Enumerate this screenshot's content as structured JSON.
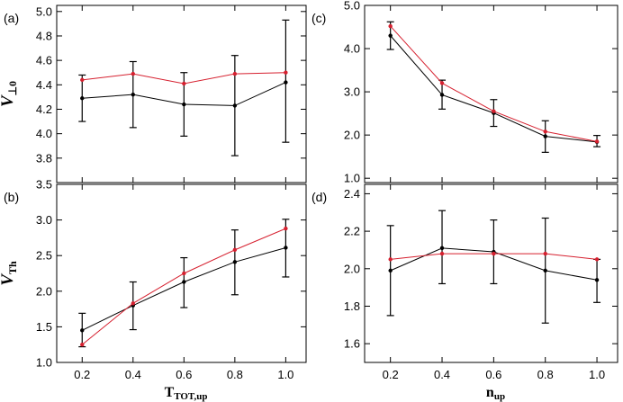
{
  "chart_data": [
    {
      "type": "line",
      "panel": "(a)",
      "ylabel_main": "V",
      "ylabel_sub": "⊥0",
      "xlabel_main": "",
      "xlabel_sub": "",
      "xlim": [
        0.1,
        1.08
      ],
      "ylim": [
        3.6,
        5.05
      ],
      "xticks": [
        0.2,
        0.4,
        0.6,
        0.8,
        1.0
      ],
      "xticklabels": [],
      "yticks": [
        3.8,
        4.0,
        4.2,
        4.4,
        4.6,
        4.8,
        5.0
      ],
      "yticklabels": [
        "3.8",
        "4.0",
        "4.2",
        "4.4",
        "4.6",
        "4.8",
        "5.0"
      ],
      "x": [
        0.2,
        0.4,
        0.6,
        0.8,
        1.0
      ],
      "series": [
        {
          "color": "#000000",
          "values": [
            4.29,
            4.32,
            4.24,
            4.23,
            4.42
          ],
          "err_low": [
            4.1,
            4.05,
            3.98,
            3.82,
            3.93
          ],
          "err_high": [
            4.48,
            4.59,
            4.5,
            4.64,
            4.93
          ]
        },
        {
          "color": "#d6202f",
          "values": [
            4.44,
            4.49,
            4.41,
            4.49,
            4.5
          ]
        }
      ]
    },
    {
      "type": "line",
      "panel": "(c)",
      "ylabel_main": "",
      "ylabel_sub": "",
      "xlabel_main": "",
      "xlabel_sub": "",
      "xlim": [
        0.1,
        1.08
      ],
      "ylim": [
        0.9,
        5.0
      ],
      "xticks": [
        0.2,
        0.4,
        0.6,
        0.8,
        1.0
      ],
      "xticklabels": [],
      "yticks": [
        1.0,
        2.0,
        3.0,
        4.0,
        5.0
      ],
      "yticklabels": [
        "1.0",
        "2.0",
        "3.0",
        "4.0",
        "5.0"
      ],
      "x": [
        0.2,
        0.4,
        0.6,
        0.8,
        1.0
      ],
      "series": [
        {
          "color": "#000000",
          "values": [
            4.3,
            2.93,
            2.51,
            1.97,
            1.84
          ],
          "err_low": [
            3.98,
            2.6,
            2.2,
            1.6,
            1.73
          ],
          "err_high": [
            4.62,
            3.27,
            2.82,
            2.33,
            1.99
          ]
        },
        {
          "color": "#d6202f",
          "values": [
            4.52,
            3.2,
            2.55,
            2.08,
            1.85
          ]
        }
      ]
    },
    {
      "type": "line",
      "panel": "(b)",
      "ylabel_main": "V",
      "ylabel_sub": "Th",
      "xlabel_main": "T",
      "xlabel_sub": "TOT,up",
      "xlim": [
        0.1,
        1.08
      ],
      "ylim": [
        1.0,
        3.5
      ],
      "xticks": [
        0.2,
        0.4,
        0.6,
        0.8,
        1.0
      ],
      "xticklabels": [
        "0.2",
        "0.4",
        "0.6",
        "0.8",
        "1.0"
      ],
      "yticks": [
        1.0,
        1.5,
        2.0,
        2.5,
        3.0,
        3.5
      ],
      "yticklabels": [
        "1.0",
        "1.5",
        "2.0",
        "2.5",
        "3.0",
        "3.5"
      ],
      "x": [
        0.2,
        0.4,
        0.6,
        0.8,
        1.0
      ],
      "series": [
        {
          "color": "#000000",
          "values": [
            1.45,
            1.8,
            2.13,
            2.41,
            2.61
          ],
          "err_low": [
            1.22,
            1.46,
            1.77,
            1.95,
            2.2
          ],
          "err_high": [
            1.69,
            2.13,
            2.47,
            2.86,
            3.01
          ]
        },
        {
          "color": "#d6202f",
          "values": [
            1.25,
            1.83,
            2.25,
            2.58,
            2.88
          ]
        }
      ]
    },
    {
      "type": "line",
      "panel": "(d)",
      "ylabel_main": "",
      "ylabel_sub": "",
      "xlabel_main": "n",
      "xlabel_sub": "up",
      "xlim": [
        0.1,
        1.08
      ],
      "ylim": [
        1.5,
        2.45
      ],
      "xticks": [
        0.2,
        0.4,
        0.6,
        0.8,
        1.0
      ],
      "xticklabels": [
        "0.2",
        "0.4",
        "0.6",
        "0.8",
        "1.0"
      ],
      "yticks": [
        1.6,
        1.8,
        2.0,
        2.2,
        2.4
      ],
      "yticklabels": [
        "1.6",
        "1.8",
        "2.0",
        "2.2",
        "2.4"
      ],
      "x": [
        0.2,
        0.4,
        0.6,
        0.8,
        1.0
      ],
      "series": [
        {
          "color": "#000000",
          "values": [
            1.99,
            2.11,
            2.09,
            1.99,
            1.94
          ],
          "err_low": [
            1.75,
            1.92,
            1.92,
            1.71,
            1.82
          ],
          "err_high": [
            2.23,
            2.31,
            2.26,
            2.27,
            2.05
          ]
        },
        {
          "color": "#d6202f",
          "values": [
            2.05,
            2.08,
            2.08,
            2.08,
            2.05
          ]
        }
      ]
    }
  ]
}
